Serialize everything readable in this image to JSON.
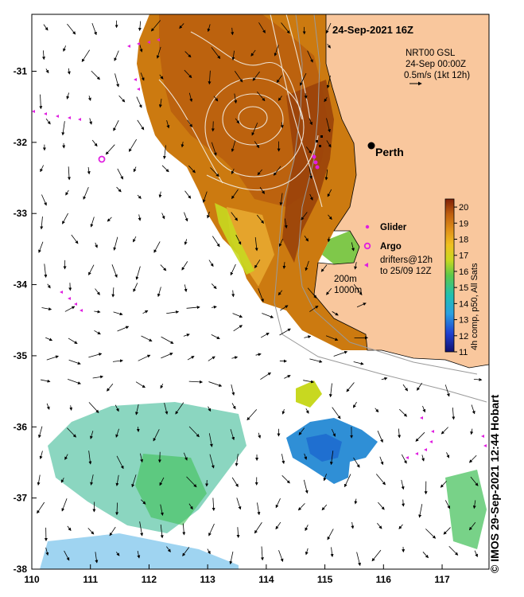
{
  "map": {
    "title": "24-Sep-2021 16Z",
    "product": {
      "line1": "NRT00 GSL",
      "line2": "24-Sep 00:00Z",
      "line3": "0.5m/s (1kt 12h)"
    },
    "place": "Perth",
    "x_ticks": [
      "110",
      "111",
      "112",
      "113",
      "114",
      "115",
      "116",
      "117"
    ],
    "y_ticks": [
      "-31",
      "-32",
      "-33",
      "-34",
      "-35",
      "-36",
      "-37",
      "-38"
    ],
    "lon_range": [
      110,
      117.8
    ],
    "lat_range": [
      -38,
      -30.2
    ],
    "legend": {
      "glider": "Glider",
      "argo": "Argo",
      "drifters_line1": "drifters@12h",
      "drifters_line2": "to 25/09 12Z",
      "depth_200": "200m",
      "depth_1000": "1000m"
    },
    "colorbar": {
      "ticks": [
        "20",
        "19",
        "18",
        "17",
        "16",
        "15",
        "14",
        "13",
        "12",
        "11"
      ],
      "min": 11,
      "max": 20.5,
      "label": "4h comp, p50, All Sats"
    },
    "credit": "© IMOS 29-Sep-2021 12:44 Hobart",
    "colors": {
      "land": "#f9c79d",
      "warm": "#cc7a10",
      "hot": "#a14a0c",
      "cool": "#7fc84a",
      "cold": "#2f8fd6",
      "markers": "#e01fe0"
    }
  }
}
